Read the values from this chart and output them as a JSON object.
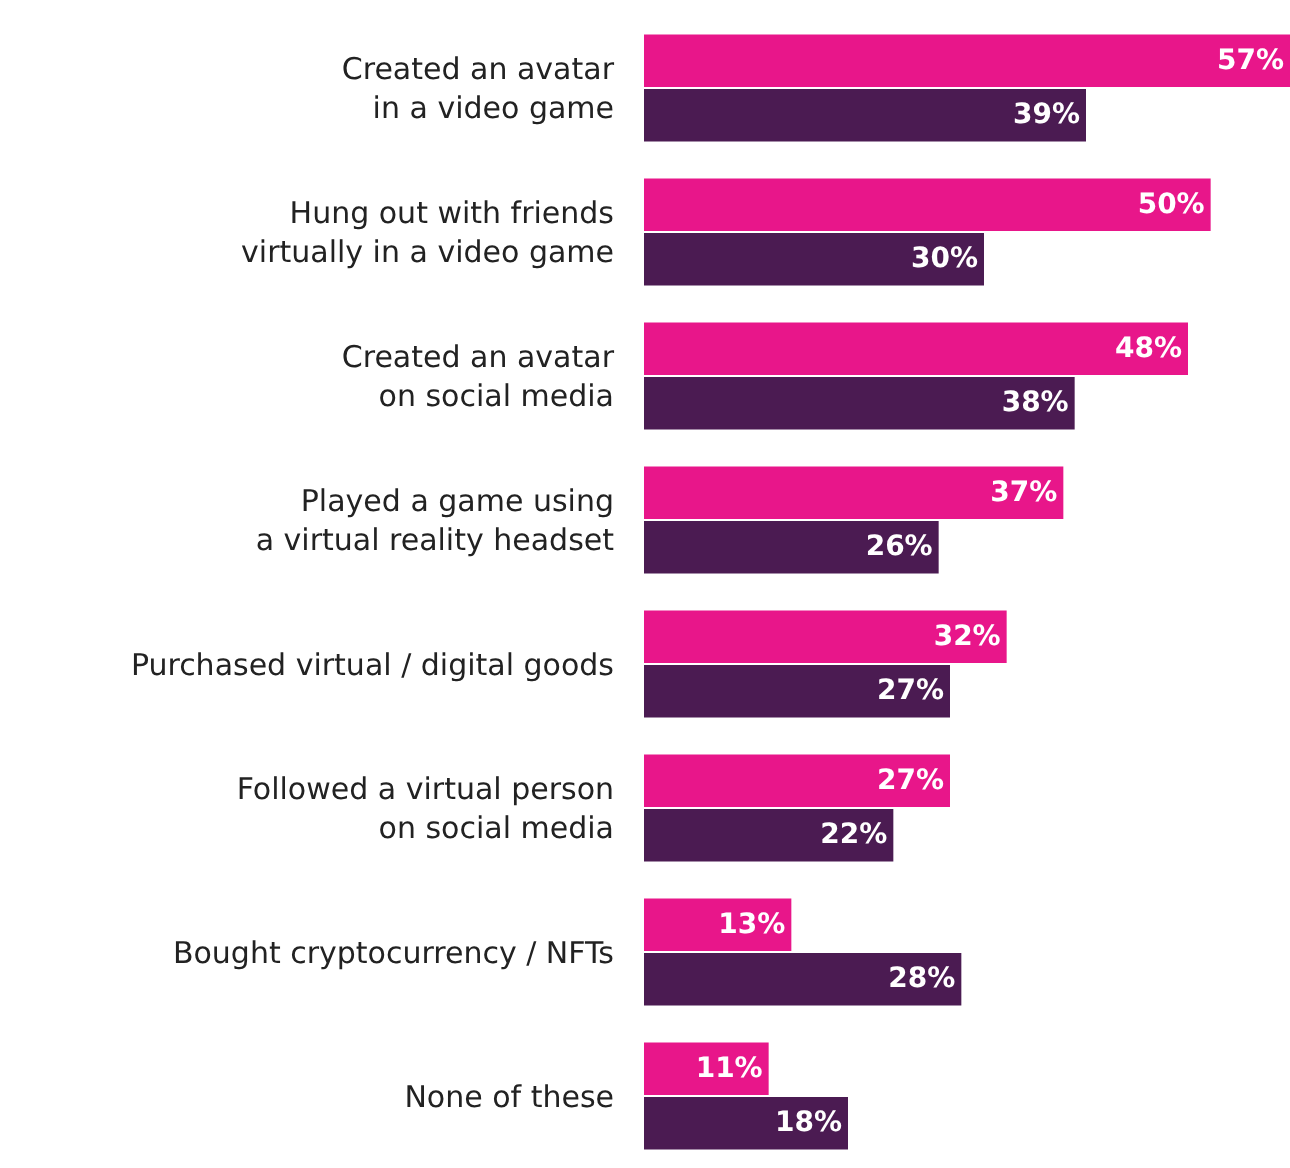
{
  "chart_data": {
    "type": "bar",
    "orientation": "horizontal",
    "categories": [
      "Created an avatar\nin a video game",
      "Hung out with friends\nvirtually in a video game",
      "Created an avatar\non social media",
      "Played a game using\na virtual reality headset",
      "Purchased virtual / digital goods",
      "Followed a virtual person\non social media",
      "Bought cryptocurrency / NFTs",
      "None of these"
    ],
    "series": [
      {
        "color": "#e8168a",
        "values": [
          57,
          50,
          48,
          37,
          32,
          27,
          13,
          11
        ],
        "value_labels": [
          "57%",
          "50%",
          "48%",
          "37%",
          "32%",
          "27%",
          "13%",
          "11%"
        ]
      },
      {
        "color": "#4b1b52",
        "values": [
          39,
          30,
          38,
          26,
          27,
          22,
          28,
          18
        ],
        "value_labels": [
          "39%",
          "30%",
          "38%",
          "26%",
          "27%",
          "22%",
          "28%",
          "18%"
        ]
      }
    ]
  }
}
